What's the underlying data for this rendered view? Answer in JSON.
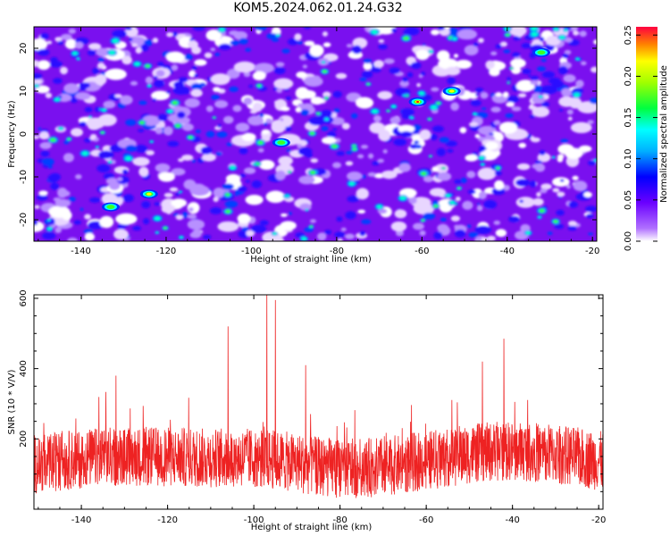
{
  "title": "KOM5.2024.062.01.24.G32",
  "chart_data": [
    {
      "type": "heatmap",
      "xlabel": "Height of straight line (km)",
      "ylabel": "Frequency (Hz)",
      "xlim": [
        -151,
        -19
      ],
      "ylim": [
        -25,
        25
      ],
      "xticks": [
        -140,
        -120,
        -100,
        -80,
        -60,
        -40,
        -20
      ],
      "yticks": [
        -20,
        -10,
        0,
        10,
        20
      ],
      "colorbar": {
        "label": "Normalized spectral amplitude",
        "range": [
          0,
          0.26
        ],
        "ticks": [
          "0.00",
          "0.05",
          "0.10",
          "0.15",
          "0.20",
          "0.25"
        ],
        "colormap": [
          "#ffffff",
          "#8a00ff",
          "#0000ff",
          "#00ffff",
          "#00ff00",
          "#ffff00",
          "#ff0000"
        ]
      },
      "hotspots": [
        {
          "x": -61,
          "y": 7.5,
          "value": 0.22
        },
        {
          "x": -53,
          "y": 10,
          "value": 0.14
        },
        {
          "x": -124,
          "y": -14,
          "value": 0.14
        },
        {
          "x": -133,
          "y": -17,
          "value": 0.12
        },
        {
          "x": -93,
          "y": -2,
          "value": 0.11
        },
        {
          "x": -32,
          "y": 19,
          "value": 0.1
        }
      ]
    },
    {
      "type": "line",
      "xlabel": "Height of straight line (km)",
      "ylabel": "SNR (10 * V/V)",
      "xlim": [
        -151,
        -19
      ],
      "ylim": [
        0,
        610
      ],
      "xticks": [
        -140,
        -120,
        -100,
        -80,
        -60,
        -40,
        -20
      ],
      "yticks": [
        200,
        400,
        600
      ],
      "color": "#ee2222",
      "baseline": 130,
      "peaks": [
        {
          "x": -97,
          "y": 610
        },
        {
          "x": -95,
          "y": 595
        },
        {
          "x": -106,
          "y": 520
        },
        {
          "x": -42,
          "y": 485
        },
        {
          "x": -132,
          "y": 380
        },
        {
          "x": -88,
          "y": 410
        },
        {
          "x": -47,
          "y": 420
        }
      ]
    }
  ]
}
